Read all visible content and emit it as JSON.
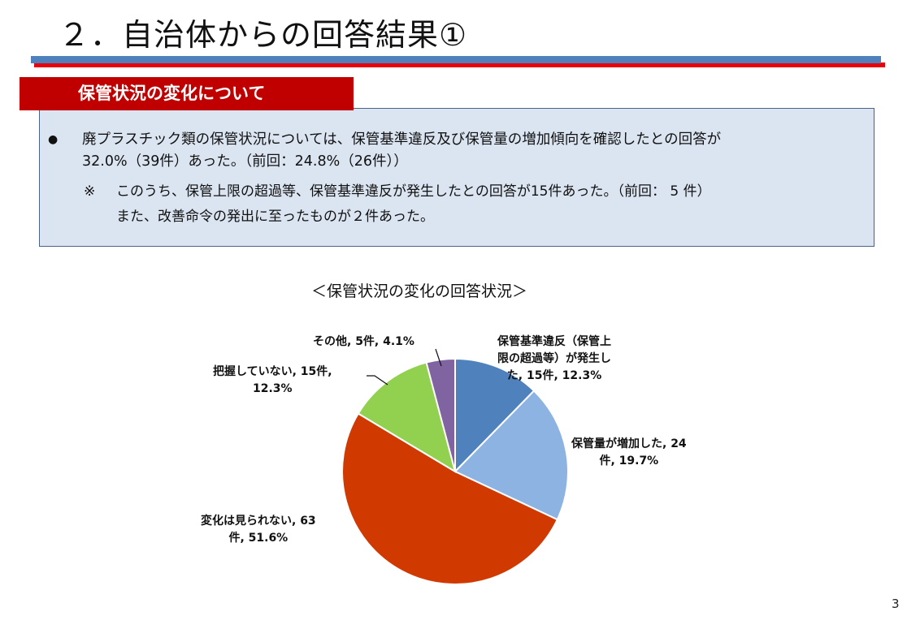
{
  "slide": {
    "title": "２．自治体からの回答結果①",
    "page_number": "3",
    "colors": {
      "title_rule_blue": "#4f81bd",
      "title_rule_red": "#e8000b",
      "banner_bg": "#c00000",
      "infobox_bg": "#dbe5f1",
      "infobox_border": "#4a6285"
    }
  },
  "section": {
    "banner_label": "保管状況の変化について"
  },
  "summary": {
    "bullet_symbol": "●",
    "bullet_line1": "廃プラスチック類の保管状況については、保管基準違反及び保管量の増加傾向を確認したとの回答が",
    "bullet_line2": "32.0%（39件）あった。（前回：24.8%（26件））",
    "note_symbol": "※",
    "note_line1": "このうち、保管上限の超過等、保管基準違反が発生したとの回答が15件あった。（前回： 5 件）",
    "note_line2": "また、改善命令の発出に至ったものが２件あった。"
  },
  "chart_data": {
    "type": "pie",
    "title": "＜保管状況の変化の回答状況＞",
    "start_angle": "12 o'clock, clockwise",
    "categories": [
      "保管基準違反（保管上限の超過等）が発生した",
      "保管量が増加した",
      "変化は見られない",
      "把握していない",
      "その他"
    ],
    "counts": [
      15,
      24,
      63,
      15,
      5
    ],
    "values": [
      12.3,
      19.7,
      51.6,
      12.3,
      4.1
    ],
    "unit": "%",
    "colors": [
      "#4f81bd",
      "#8db3e2",
      "#d03a00",
      "#92d050",
      "#8064a2"
    ],
    "labels": [
      {
        "line1": "保管基準違反（保管上",
        "line2": "限の超過等）が発生し",
        "line3": "た, 15件, 12.3%"
      },
      {
        "line1": "保管量が増加した, 24",
        "line2": "件, 19.7%"
      },
      {
        "line1": "変化は見られない, 63",
        "line2": "件, 51.6%"
      },
      {
        "line1": "把握していない, 15件,",
        "line2": "12.3%"
      },
      {
        "line1": "その他, 5件, 4.1%"
      }
    ],
    "legend": "none (data labels on slices)"
  }
}
